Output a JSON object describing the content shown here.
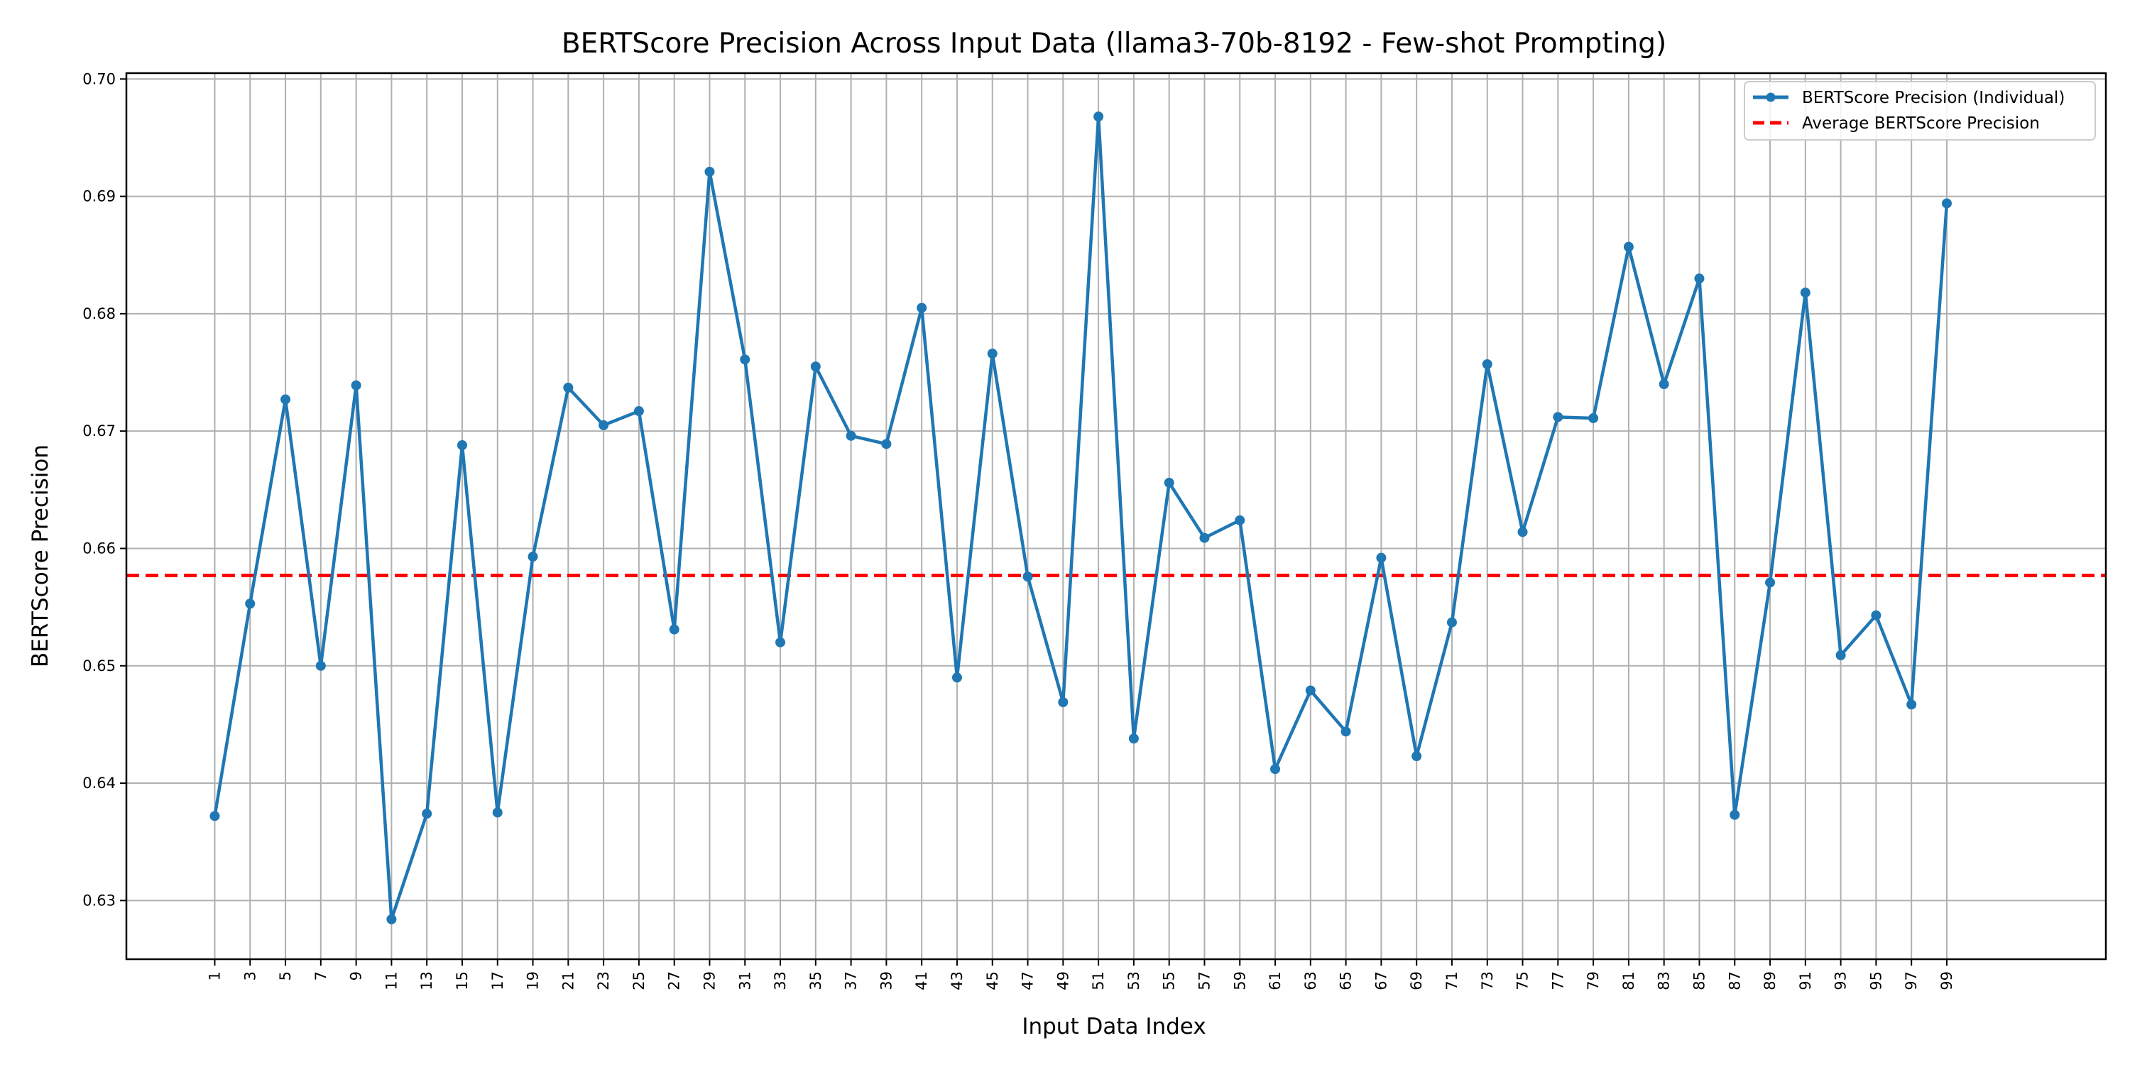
{
  "chart_data": {
    "type": "line",
    "title": "BERTScore Precision Across Input Data (llama3-70b-8192 - Few-shot Prompting)",
    "xlabel": "Input Data Index",
    "ylabel": "BERTScore Precision",
    "xlim": [
      -4,
      108
    ],
    "ylim": [
      0.625,
      0.7005
    ],
    "x_ticks": [
      1,
      3,
      5,
      7,
      9,
      11,
      13,
      15,
      17,
      19,
      21,
      23,
      25,
      27,
      29,
      31,
      33,
      35,
      37,
      39,
      41,
      43,
      45,
      47,
      49,
      51,
      53,
      55,
      57,
      59,
      61,
      63,
      65,
      67,
      69,
      71,
      73,
      75,
      77,
      79,
      81,
      83,
      85,
      87,
      89,
      91,
      93,
      95,
      97,
      99
    ],
    "y_ticks": [
      "0.63",
      "0.64",
      "0.65",
      "0.66",
      "0.67",
      "0.68",
      "0.69",
      "0.70"
    ],
    "grid": true,
    "legend_position": "top-right",
    "series": [
      {
        "name": "BERTScore Precision (Individual)",
        "color": "#1f77b4",
        "marker": "circle",
        "x": [
          1,
          3,
          5,
          7,
          9,
          11,
          13,
          15,
          17,
          19,
          21,
          23,
          25,
          27,
          29,
          31,
          33,
          35,
          37,
          39,
          41,
          43,
          45,
          47,
          49,
          51,
          53,
          55,
          57,
          59,
          61,
          63,
          65,
          67,
          69,
          71,
          73,
          75,
          77,
          79,
          81,
          83,
          85,
          87,
          89,
          91,
          93,
          95,
          97,
          99
        ],
        "values": [
          0.6372,
          0.6553,
          0.6727,
          0.65,
          0.6739,
          0.6284,
          0.6374,
          0.6688,
          0.6375,
          0.6593,
          0.6737,
          0.6705,
          0.6717,
          0.6531,
          0.6921,
          0.6761,
          0.652,
          0.6755,
          0.6696,
          0.6689,
          0.6805,
          0.649,
          0.6766,
          0.6576,
          0.6469,
          0.6968,
          0.6438,
          0.6656,
          0.6609,
          0.6624,
          0.6412,
          0.6479,
          0.6444,
          0.6592,
          0.6423,
          0.6537,
          0.6757,
          0.6614,
          0.6712,
          0.6711,
          0.6857,
          0.674,
          0.683,
          0.6373,
          0.6571,
          0.6818,
          0.6509,
          0.6543,
          0.6467,
          0.6894
        ]
      },
      {
        "name": "Average BERTScore Precision",
        "color": "#ff0000",
        "style": "dashed",
        "value": 0.6577
      }
    ]
  }
}
